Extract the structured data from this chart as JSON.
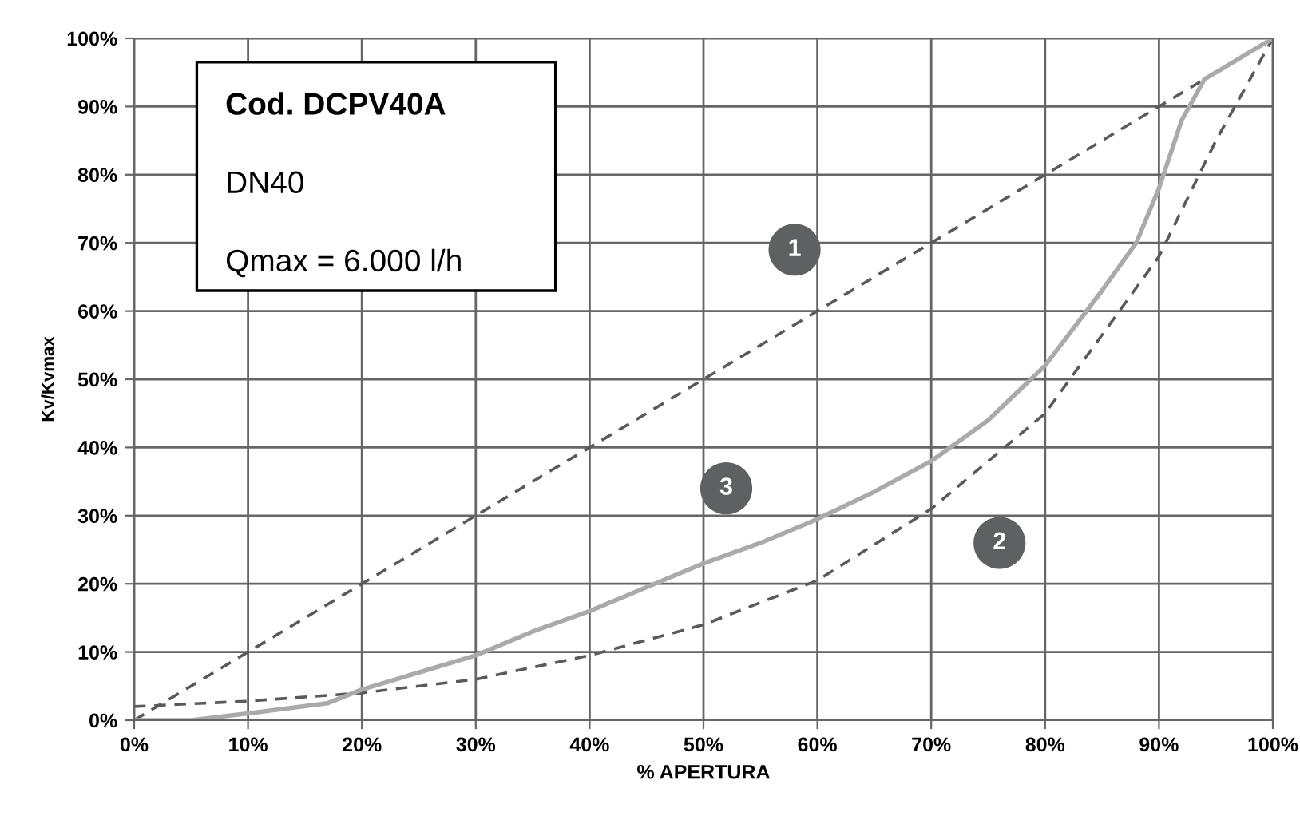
{
  "chart_data": {
    "type": "line",
    "xlabel": "% APERTURA",
    "ylabel": "Kv/Kvmax",
    "xlim": [
      0,
      100
    ],
    "ylim": [
      0,
      100
    ],
    "xticks": [
      {
        "value": 0,
        "label": "0%"
      },
      {
        "value": 10,
        "label": "10%"
      },
      {
        "value": 20,
        "label": "20%"
      },
      {
        "value": 30,
        "label": "30%"
      },
      {
        "value": 40,
        "label": "40%"
      },
      {
        "value": 50,
        "label": "50%"
      },
      {
        "value": 60,
        "label": "60%"
      },
      {
        "value": 70,
        "label": "70%"
      },
      {
        "value": 80,
        "label": "80%"
      },
      {
        "value": 90,
        "label": "90%"
      },
      {
        "value": 100,
        "label": "100%"
      }
    ],
    "yticks": [
      {
        "value": 0,
        "label": "0%"
      },
      {
        "value": 10,
        "label": "10%"
      },
      {
        "value": 20,
        "label": "20%"
      },
      {
        "value": 30,
        "label": "30%"
      },
      {
        "value": 40,
        "label": "40%"
      },
      {
        "value": 50,
        "label": "50%"
      },
      {
        "value": 60,
        "label": "60%"
      },
      {
        "value": 70,
        "label": "70%"
      },
      {
        "value": 80,
        "label": "80%"
      },
      {
        "value": 90,
        "label": "90%"
      },
      {
        "value": 100,
        "label": "100%"
      }
    ],
    "grid": true,
    "series": [
      {
        "color": "#5a5a5a",
        "line_style": "dashed",
        "x": [
          0,
          100
        ],
        "values": [
          0,
          100
        ]
      },
      {
        "color": "#5a5a5a",
        "line_style": "dashed",
        "x": [
          0,
          10,
          20,
          30,
          40,
          50,
          60,
          70,
          80,
          90,
          95,
          100
        ],
        "values": [
          2,
          2.8,
          4,
          6,
          9.5,
          14,
          20.5,
          31,
          45,
          68,
          85,
          100
        ]
      },
      {
        "color": "#aaaaaa",
        "line_style": "solid",
        "x": [
          0,
          5,
          10,
          17,
          20,
          25,
          30,
          35,
          40,
          45,
          50,
          55,
          60,
          65,
          70,
          75,
          80,
          85,
          88,
          90,
          92,
          94,
          100
        ],
        "values": [
          0,
          0,
          1,
          2.5,
          4.5,
          7,
          9.5,
          13,
          16,
          19.5,
          23,
          26,
          29.5,
          33.5,
          38,
          44,
          52,
          63,
          70,
          78,
          88,
          94,
          100
        ]
      }
    ],
    "annotations": [
      "Cod. DCPV40A",
      "DN40",
      "Qmax = 6.000 l/h",
      {
        "text": "1",
        "x": 58,
        "y": 69
      },
      {
        "text": "3",
        "x": 52,
        "y": 34
      },
      {
        "text": "2",
        "x": 76,
        "y": 26
      }
    ]
  }
}
